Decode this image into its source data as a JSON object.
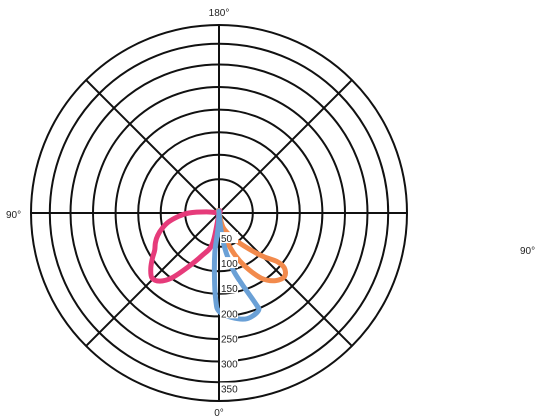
{
  "chart_data": {
    "type": "polar",
    "angle_labels": {
      "top": "180°",
      "left": "90°",
      "bottom": "0°"
    },
    "outside_label": "90°",
    "radial_ticks": [
      "50",
      "100",
      "150",
      "200",
      "250",
      "300",
      "350"
    ],
    "rmax": 375,
    "colors": {
      "pink": "#e63b7a",
      "orange": "#f28a4c",
      "blue": "#6aa0d6",
      "grid": "#111111"
    },
    "series": [
      {
        "color_key": "pink",
        "points": [
          [
            0,
            0
          ],
          [
            12,
            62
          ],
          [
            22,
            92
          ],
          [
            30,
            125
          ],
          [
            36,
            160
          ],
          [
            41,
            180
          ],
          [
            46,
            186
          ],
          [
            51,
            175
          ],
          [
            56,
            160
          ],
          [
            60,
            148
          ],
          [
            65,
            140
          ],
          [
            70,
            130
          ],
          [
            75,
            117
          ],
          [
            80,
            102
          ],
          [
            85,
            82
          ],
          [
            90,
            60
          ],
          [
            95,
            25
          ],
          [
            98,
            0
          ]
        ]
      },
      {
        "color_key": "orange",
        "points": [
          [
            0,
            0
          ],
          [
            -14,
            50
          ],
          [
            -20,
            85
          ],
          [
            -26,
            118
          ],
          [
            -33,
            155
          ],
          [
            -40,
            176
          ],
          [
            -46,
            182
          ],
          [
            -50,
            170
          ],
          [
            -50,
            150
          ],
          [
            -45,
            121
          ],
          [
            -37,
            82
          ],
          [
            -28,
            55
          ],
          [
            -16,
            30
          ],
          [
            0,
            0
          ]
        ]
      },
      {
        "color_key": "blue",
        "points": [
          [
            0,
            0
          ],
          [
            -7,
            40
          ],
          [
            -10,
            78
          ],
          [
            -14,
            118
          ],
          [
            -18,
            150
          ],
          [
            -22,
            195
          ],
          [
            -22,
            210
          ],
          [
            -15,
            218
          ],
          [
            -7,
            210
          ],
          [
            0,
            196
          ],
          [
            2,
            176
          ],
          [
            4,
            130
          ],
          [
            6,
            80
          ],
          [
            5,
            48
          ],
          [
            3,
            24
          ],
          [
            0,
            0
          ]
        ]
      }
    ]
  }
}
